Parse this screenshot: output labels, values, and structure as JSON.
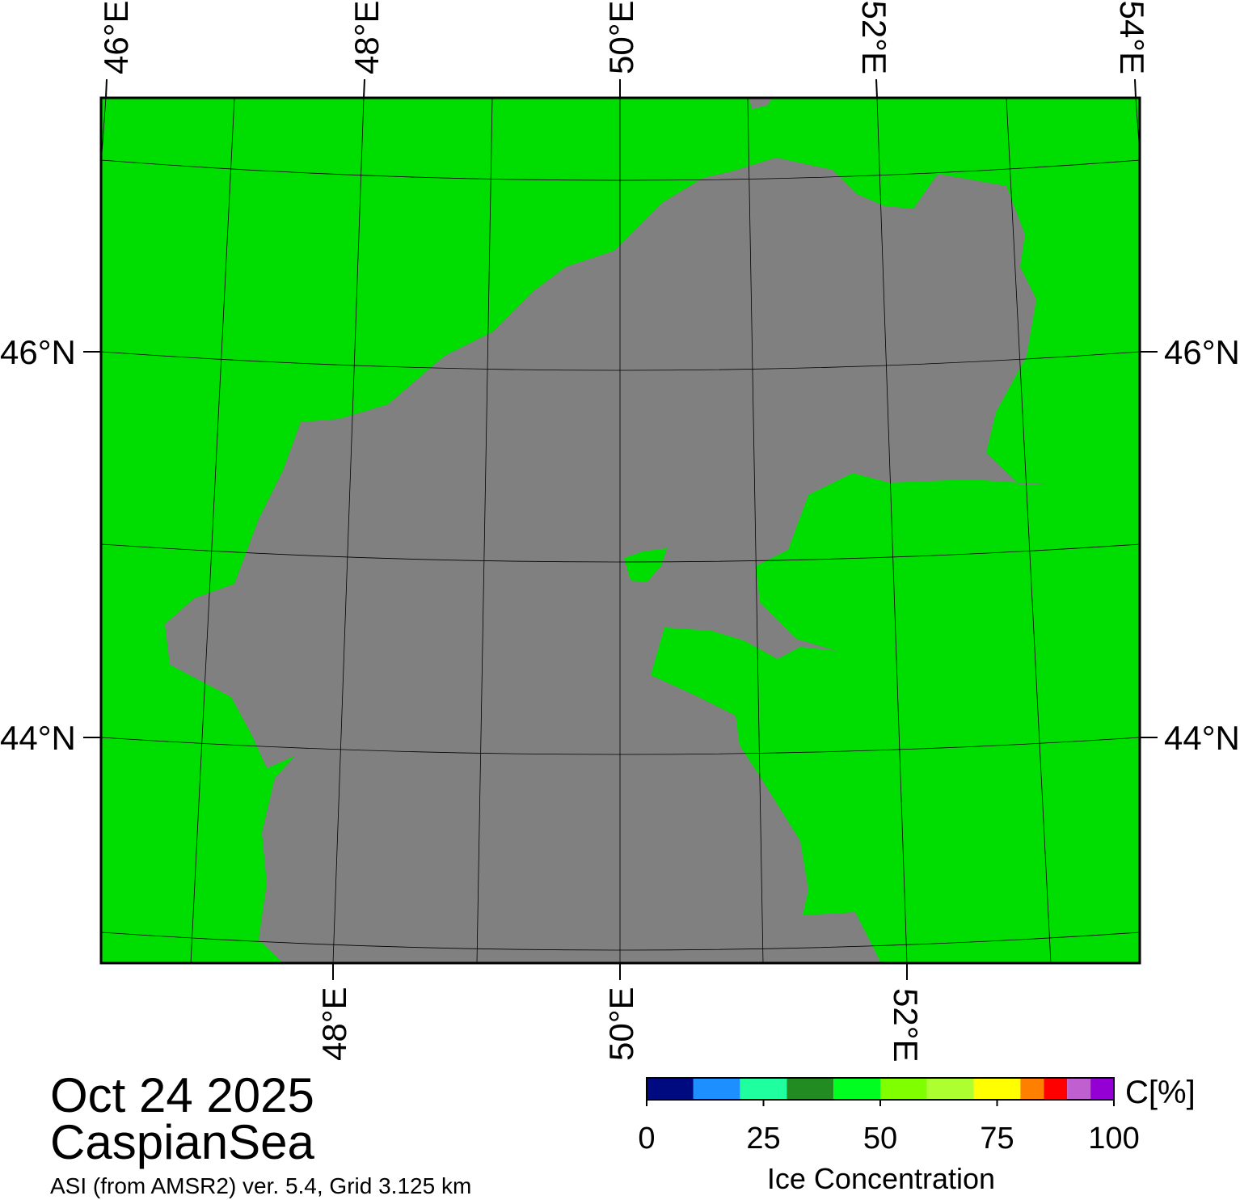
{
  "map": {
    "top_labels": [
      "46°E",
      "48°E",
      "50°E",
      "52°E",
      "54°E"
    ],
    "bottom_labels": [
      "48°E",
      "50°E",
      "52°E"
    ],
    "left_labels": [
      "46°N",
      "44°N"
    ],
    "right_labels": [
      "46°N",
      "44°N"
    ]
  },
  "caption": {
    "date": "Oct 24 2025",
    "region": "CaspianSea",
    "source": "ASI (from AMSR2) ver. 5.4,  Grid 3.125 km"
  },
  "colorbar": {
    "title": "Ice Concentration",
    "unit": "C[%]",
    "range": [
      0,
      100
    ],
    "ticks": [
      0,
      25,
      50,
      75,
      100
    ],
    "bounds": [
      0,
      10,
      20,
      30,
      40,
      50,
      60,
      70,
      80,
      85,
      90,
      95,
      100
    ],
    "colors": [
      "#000a80",
      "#1e8fff",
      "#20ffa0",
      "#228b22",
      "#00ff20",
      "#80ff00",
      "#adff2f",
      "#ffff00",
      "#ff8000",
      "#ff0000",
      "#c060d0",
      "#9400d3"
    ]
  }
}
